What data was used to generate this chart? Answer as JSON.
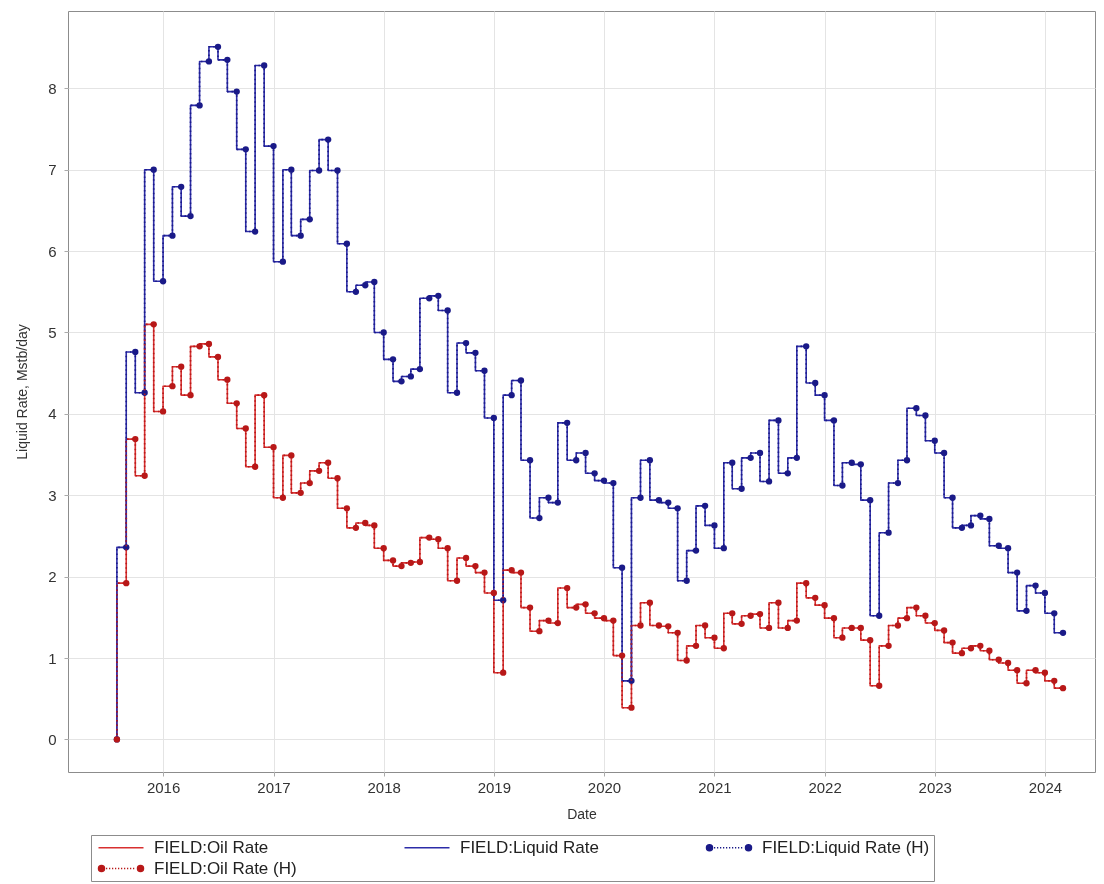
{
  "chart_data": {
    "type": "step",
    "xlabel": "Date",
    "ylabel": "Liquid Rate, Mstb/day",
    "x": [
      "2015-08",
      "2015-09",
      "2015-10",
      "2015-11",
      "2015-12",
      "2016-01",
      "2016-02",
      "2016-03",
      "2016-04",
      "2016-05",
      "2016-06",
      "2016-07",
      "2016-08",
      "2016-09",
      "2016-10",
      "2016-11",
      "2016-12",
      "2017-01",
      "2017-02",
      "2017-03",
      "2017-04",
      "2017-05",
      "2017-06",
      "2017-07",
      "2017-08",
      "2017-09",
      "2017-10",
      "2017-11",
      "2017-12",
      "2018-01",
      "2018-02",
      "2018-03",
      "2018-04",
      "2018-05",
      "2018-06",
      "2018-07",
      "2018-08",
      "2018-09",
      "2018-10",
      "2018-11",
      "2018-12",
      "2019-01",
      "2019-02",
      "2019-03",
      "2019-04",
      "2019-05",
      "2019-06",
      "2019-07",
      "2019-08",
      "2019-09",
      "2019-10",
      "2019-11",
      "2019-12",
      "2020-01",
      "2020-02",
      "2020-03",
      "2020-04",
      "2020-05",
      "2020-06",
      "2020-07",
      "2020-08",
      "2020-09",
      "2020-10",
      "2020-11",
      "2020-12",
      "2021-01",
      "2021-02",
      "2021-03",
      "2021-04",
      "2021-05",
      "2021-06",
      "2021-07",
      "2021-08",
      "2021-09",
      "2021-10",
      "2021-11",
      "2021-12",
      "2022-01",
      "2022-02",
      "2022-03",
      "2022-04",
      "2022-05",
      "2022-06",
      "2022-07",
      "2022-08",
      "2022-09",
      "2022-10",
      "2022-11",
      "2022-12",
      "2023-01",
      "2023-02",
      "2023-03",
      "2023-04",
      "2023-05",
      "2023-06",
      "2023-07",
      "2023-08",
      "2023-09",
      "2023-10",
      "2023-11",
      "2023-12",
      "2024-01",
      "2024-02",
      "2024-03"
    ],
    "xlim": [
      "2015-02-20",
      "2024-06-15"
    ],
    "xticks": [
      "2016",
      "2017",
      "2018",
      "2019",
      "2020",
      "2021",
      "2022",
      "2023",
      "2024"
    ],
    "ylim": [
      -0.4,
      8.95
    ],
    "yticks": [
      0,
      1,
      2,
      3,
      4,
      5,
      6,
      7,
      8
    ],
    "grid": true,
    "legend": "bottom",
    "marker": "none",
    "line_style": "solid",
    "series": [
      {
        "name": "FIELD:Oil Rate",
        "color": "#d83030",
        "values": [
          0,
          1.92,
          3.69,
          3.24,
          5.1,
          4.03,
          4.34,
          4.58,
          4.23,
          4.83,
          4.86,
          4.7,
          4.42,
          4.13,
          3.82,
          3.35,
          4.23,
          3.59,
          2.97,
          3.49,
          3.03,
          3.15,
          3.3,
          3.4,
          3.21,
          2.84,
          2.6,
          2.66,
          2.63,
          2.35,
          2.2,
          2.13,
          2.17,
          2.18,
          2.48,
          2.46,
          2.35,
          1.95,
          2.23,
          2.13,
          2.05,
          1.8,
          0.82,
          2.08,
          2.05,
          1.62,
          1.33,
          1.46,
          1.43,
          1.86,
          1.62,
          1.66,
          1.55,
          1.49,
          1.46,
          1.03,
          0.39,
          1.4,
          1.68,
          1.4,
          1.39,
          1.31,
          0.97,
          1.15,
          1.4,
          1.25,
          1.12,
          1.55,
          1.42,
          1.52,
          1.54,
          1.37,
          1.68,
          1.37,
          1.46,
          1.92,
          1.74,
          1.65,
          1.49,
          1.25,
          1.37,
          1.37,
          1.22,
          0.66,
          1.15,
          1.4,
          1.49,
          1.62,
          1.52,
          1.43,
          1.34,
          1.19,
          1.06,
          1.12,
          1.15,
          1.09,
          0.98,
          0.94,
          0.85,
          0.69,
          0.85,
          0.82,
          0.72,
          0.63
        ]
      },
      {
        "name": "FIELD:Liquid Rate",
        "color": "#2c2ca8",
        "values": [
          0,
          2.36,
          4.76,
          4.26,
          7.0,
          5.63,
          6.19,
          6.79,
          6.43,
          7.79,
          8.33,
          8.51,
          8.35,
          7.96,
          7.25,
          6.24,
          8.28,
          7.29,
          5.87,
          7.0,
          6.19,
          6.39,
          6.99,
          7.37,
          6.99,
          6.09,
          5.5,
          5.58,
          5.62,
          5.0,
          4.67,
          4.4,
          4.46,
          4.55,
          5.42,
          5.45,
          5.27,
          4.26,
          4.87,
          4.75,
          4.53,
          3.95,
          1.71,
          4.23,
          4.41,
          3.43,
          2.72,
          2.97,
          2.91,
          3.89,
          3.43,
          3.52,
          3.27,
          3.18,
          3.15,
          2.11,
          0.72,
          2.97,
          3.43,
          2.94,
          2.91,
          2.84,
          1.95,
          2.32,
          2.87,
          2.63,
          2.35,
          3.4,
          3.08,
          3.46,
          3.52,
          3.17,
          3.92,
          3.27,
          3.46,
          4.83,
          4.38,
          4.23,
          3.92,
          3.12,
          3.4,
          3.38,
          2.94,
          1.52,
          2.54,
          3.15,
          3.43,
          4.07,
          3.98,
          3.67,
          3.52,
          2.97,
          2.6,
          2.63,
          2.75,
          2.71,
          2.38,
          2.35,
          2.05,
          1.58,
          1.89,
          1.8,
          1.55,
          1.31
        ]
      },
      {
        "name": "FIELD:Liquid Rate (H)",
        "color": "#1a1a88",
        "marker": "circle",
        "line_style": "dotted",
        "values": [
          0,
          2.36,
          4.76,
          4.26,
          7.0,
          5.63,
          6.19,
          6.79,
          6.43,
          7.79,
          8.33,
          8.51,
          8.35,
          7.96,
          7.25,
          6.24,
          8.28,
          7.29,
          5.87,
          7.0,
          6.19,
          6.39,
          6.99,
          7.37,
          6.99,
          6.09,
          5.5,
          5.58,
          5.62,
          5.0,
          4.67,
          4.4,
          4.46,
          4.55,
          5.42,
          5.45,
          5.27,
          4.26,
          4.87,
          4.75,
          4.53,
          3.95,
          1.71,
          4.23,
          4.41,
          3.43,
          2.72,
          2.97,
          2.91,
          3.89,
          3.43,
          3.52,
          3.27,
          3.18,
          3.15,
          2.11,
          0.72,
          2.97,
          3.43,
          2.94,
          2.91,
          2.84,
          1.95,
          2.32,
          2.87,
          2.63,
          2.35,
          3.4,
          3.08,
          3.46,
          3.52,
          3.17,
          3.92,
          3.27,
          3.46,
          4.83,
          4.38,
          4.23,
          3.92,
          3.12,
          3.4,
          3.38,
          2.94,
          1.52,
          2.54,
          3.15,
          3.43,
          4.07,
          3.98,
          3.67,
          3.52,
          2.97,
          2.6,
          2.63,
          2.75,
          2.71,
          2.38,
          2.35,
          2.05,
          1.58,
          1.89,
          1.8,
          1.55,
          1.31
        ]
      },
      {
        "name": "FIELD:Oil Rate (H)",
        "color": "#b81818",
        "marker": "circle",
        "line_style": "dotted",
        "values": [
          0,
          1.92,
          3.69,
          3.24,
          5.1,
          4.03,
          4.34,
          4.58,
          4.23,
          4.83,
          4.86,
          4.7,
          4.42,
          4.13,
          3.82,
          3.35,
          4.23,
          3.59,
          2.97,
          3.49,
          3.03,
          3.15,
          3.3,
          3.4,
          3.21,
          2.84,
          2.6,
          2.66,
          2.63,
          2.35,
          2.2,
          2.13,
          2.17,
          2.18,
          2.48,
          2.46,
          2.35,
          1.95,
          2.23,
          2.13,
          2.05,
          1.8,
          0.82,
          2.08,
          2.05,
          1.62,
          1.33,
          1.46,
          1.43,
          1.86,
          1.62,
          1.66,
          1.55,
          1.49,
          1.46,
          1.03,
          0.39,
          1.4,
          1.68,
          1.4,
          1.39,
          1.31,
          0.97,
          1.15,
          1.4,
          1.25,
          1.12,
          1.55,
          1.42,
          1.52,
          1.54,
          1.37,
          1.68,
          1.37,
          1.46,
          1.92,
          1.74,
          1.65,
          1.49,
          1.25,
          1.37,
          1.37,
          1.22,
          0.66,
          1.15,
          1.4,
          1.49,
          1.62,
          1.52,
          1.43,
          1.34,
          1.19,
          1.06,
          1.12,
          1.15,
          1.09,
          0.98,
          0.94,
          0.85,
          0.69,
          0.85,
          0.82,
          0.72,
          0.63
        ]
      }
    ]
  }
}
